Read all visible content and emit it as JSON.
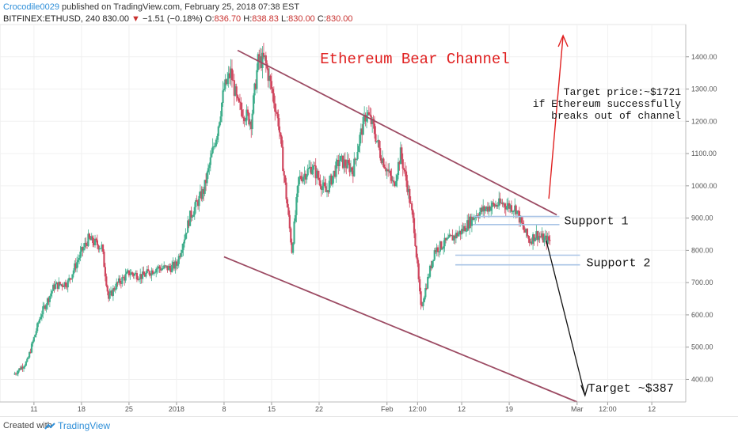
{
  "header": {
    "author": "Crocodile0029",
    "published_text": "published on TradingView.com, February 25, 2018 07:38 EST",
    "symbol": "BITFINEX:ETHUSD, 240",
    "last": "830.00",
    "change_arrow": "▼",
    "change": "−1.51 (−0.18%)",
    "o_label": "O:",
    "o_val": "836.70",
    "h_label": "H:",
    "h_val": "838.83",
    "l_label": "L:",
    "l_val": "830.00",
    "c_label": "C:",
    "c_val": "830.00"
  },
  "footer": {
    "created_with": "Created with",
    "brand": "TradingView",
    "brand_icon": "tradingview-logo-icon"
  },
  "colors": {
    "up": "#3fae8c",
    "down": "#d0475f",
    "channel": "#9c4b63",
    "support": "#a9c4e6",
    "title": "#e02020",
    "target_up": "#e02020",
    "target_down": "#111111"
  },
  "chart_data": {
    "type": "candlestick",
    "title": "Ethereum Bear Channel",
    "y_ticks": [
      400,
      500,
      600,
      700,
      800,
      900,
      1000,
      1100,
      1200,
      1300,
      1400
    ],
    "y_tick_labels": [
      "400.00",
      "500.00",
      "600.00",
      "700.00",
      "800.00",
      "900.00",
      "1000.00",
      "1100.00",
      "1200.00",
      "1300.00",
      "1400.00"
    ],
    "ylim": [
      330,
      1500
    ],
    "x_ticks": [
      "11",
      "18",
      "25",
      "2018",
      "8",
      "15",
      "22",
      "Feb",
      "12:00",
      "12",
      "19",
      "Mar",
      "12:00",
      "12"
    ],
    "x_tick_dates": [
      "2017-12-11",
      "2017-12-18",
      "2017-12-25",
      "2018-01-01",
      "2018-01-08",
      "2018-01-15",
      "2018-01-22",
      "2018-02-01",
      "2018-02-05 12:00",
      "2018-02-12",
      "2018-02-19",
      "2018-03-01",
      "2018-03-05 12:00",
      "2018-03-12"
    ],
    "price_path": [
      [
        "2017-12-08",
        415
      ],
      [
        "2017-12-10",
        455
      ],
      [
        "2017-12-12",
        600
      ],
      [
        "2017-12-14",
        690
      ],
      [
        "2017-12-16",
        700
      ],
      [
        "2017-12-18",
        795
      ],
      [
        "2017-12-19",
        835
      ],
      [
        "2017-12-21",
        810
      ],
      [
        "2017-12-22",
        650
      ],
      [
        "2017-12-23",
        690
      ],
      [
        "2017-12-25",
        730
      ],
      [
        "2017-12-27",
        720
      ],
      [
        "2017-12-29",
        745
      ],
      [
        "2017-12-31",
        745
      ],
      [
        "2018-01-01",
        755
      ],
      [
        "2018-01-03",
        905
      ],
      [
        "2018-01-05",
        985
      ],
      [
        "2018-01-07",
        1170
      ],
      [
        "2018-01-08",
        1300
      ],
      [
        "2018-01-09",
        1350
      ],
      [
        "2018-01-10",
        1250
      ],
      [
        "2018-01-12",
        1200
      ],
      [
        "2018-01-13",
        1385
      ],
      [
        "2018-01-14",
        1390
      ],
      [
        "2018-01-15",
        1300
      ],
      [
        "2018-01-16",
        1200
      ],
      [
        "2018-01-17",
        1000
      ],
      [
        "2018-01-18",
        800
      ],
      [
        "2018-01-19",
        1020
      ],
      [
        "2018-01-21",
        1060
      ],
      [
        "2018-01-23",
        980
      ],
      [
        "2018-01-25",
        1080
      ],
      [
        "2018-01-27",
        1050
      ],
      [
        "2018-01-28",
        1150
      ],
      [
        "2018-01-29",
        1230
      ],
      [
        "2018-01-30",
        1180
      ],
      [
        "2018-01-31",
        1100
      ],
      [
        "2018-02-02",
        1000
      ],
      [
        "2018-02-03",
        1100
      ],
      [
        "2018-02-04",
        1000
      ],
      [
        "2018-02-05",
        870
      ],
      [
        "2018-02-06",
        620
      ],
      [
        "2018-02-07",
        710
      ],
      [
        "2018-02-08",
        800
      ],
      [
        "2018-02-10",
        830
      ],
      [
        "2018-02-12",
        860
      ],
      [
        "2018-02-14",
        910
      ],
      [
        "2018-02-16",
        935
      ],
      [
        "2018-02-18",
        945
      ],
      [
        "2018-02-20",
        930
      ],
      [
        "2018-02-21",
        870
      ],
      [
        "2018-02-22",
        830
      ],
      [
        "2018-02-23",
        850
      ],
      [
        "2018-02-24",
        835
      ],
      [
        "2018-02-25",
        830
      ]
    ],
    "annotations": {
      "channel_upper": [
        [
          "2018-01-10",
          1420
        ],
        [
          "2018-02-26",
          910
        ]
      ],
      "channel_lower": [
        [
          "2018-01-08",
          780
        ],
        [
          "2018-03-01",
          330
        ]
      ],
      "support_1": {
        "label": "Support 1",
        "levels": [
          905,
          880
        ]
      },
      "support_2": {
        "label": "Support 2",
        "levels": [
          785,
          755
        ]
      },
      "target_up": {
        "price": 1721,
        "label_lines": [
          "Target price:~$1721",
          "if Ethereum successfully",
          "breaks out of channel"
        ]
      },
      "target_down": {
        "price": 387,
        "label": "Target ~$387"
      }
    }
  }
}
